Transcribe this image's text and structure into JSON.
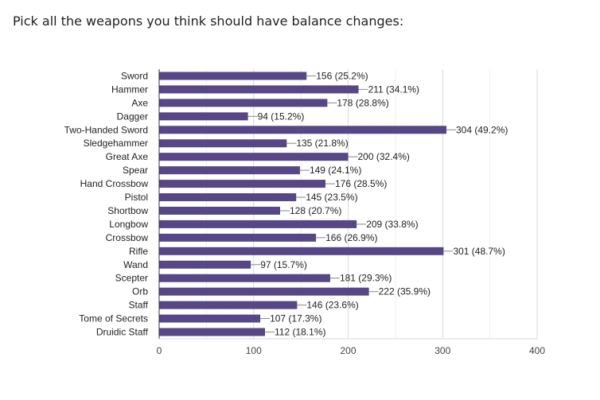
{
  "question": "Pick all the weapons you think should have balance changes:",
  "chart_data": {
    "type": "bar",
    "orientation": "horizontal",
    "categories": [
      "Sword",
      "Hammer",
      "Axe",
      "Dagger",
      "Two-Handed Sword",
      "Sledgehammer",
      "Great Axe",
      "Spear",
      "Hand Crossbow",
      "Pistol",
      "Shortbow",
      "Longbow",
      "Crossbow",
      "Rifle",
      "Wand",
      "Scepter",
      "Orb",
      "Staff",
      "Tome of Secrets",
      "Druidic Staff"
    ],
    "values": [
      156,
      211,
      178,
      94,
      304,
      135,
      200,
      149,
      176,
      145,
      128,
      209,
      166,
      301,
      97,
      181,
      222,
      146,
      107,
      112
    ],
    "data_labels": [
      "156 (25.2%)",
      "211 (34.1%)",
      "178 (28.8%)",
      "94 (15.2%)",
      "304 (49.2%)",
      "135 (21.8%)",
      "200 (32.4%)",
      "149 (24.1%)",
      "176 (28.5%)",
      "145 (23.5%)",
      "128 (20.7%)",
      "209 (33.8%)",
      "166 (26.9%)",
      "301 (48.7%)",
      "97 (15.7%)",
      "181 (29.3%)",
      "222 (35.9%)",
      "146 (23.6%)",
      "107 (17.3%)",
      "112 (18.1%)"
    ],
    "xlim": [
      0,
      400
    ],
    "xticks": [
      0,
      100,
      200,
      300,
      400
    ],
    "xtick_labels": [
      "0",
      "100",
      "200",
      "300",
      "400"
    ],
    "grid": true,
    "bar_color": "#574786"
  }
}
